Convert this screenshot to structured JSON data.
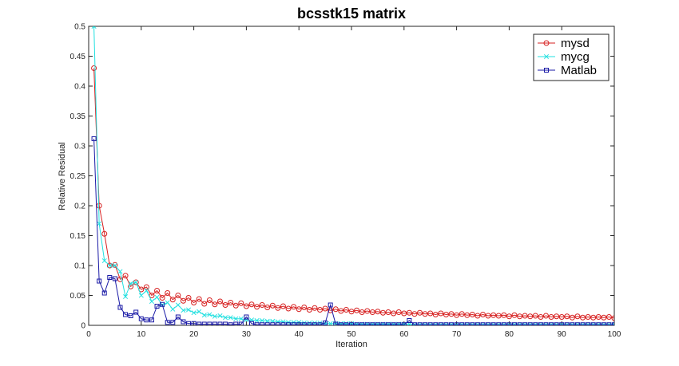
{
  "chart_data": {
    "type": "line",
    "title": "bcsstk15 matrix",
    "xlabel": "Iteration",
    "ylabel": "Relative Residual",
    "xlim": [
      0,
      100
    ],
    "ylim": [
      0,
      0.5
    ],
    "xticks": [
      0,
      10,
      20,
      30,
      40,
      50,
      60,
      70,
      80,
      90,
      100
    ],
    "yticks": [
      0,
      0.05,
      0.1,
      0.15,
      0.2,
      0.25,
      0.3,
      0.35,
      0.4,
      0.45,
      0.5
    ],
    "ytick_labels": [
      "0",
      "0.05",
      "0.1",
      "0.15",
      "0.2",
      "0.25",
      "0.3",
      "0.35",
      "0.4",
      "0.45",
      "0.5"
    ],
    "grid": false,
    "legend_position": "top-right",
    "series": [
      {
        "name": "mysd",
        "color": "#d62020",
        "marker": "circle",
        "x": [
          1,
          2,
          3,
          4,
          5,
          6,
          7,
          8,
          9,
          10,
          11,
          12,
          13,
          14,
          15,
          16,
          17,
          18,
          19,
          20,
          21,
          22,
          23,
          24,
          25,
          26,
          27,
          28,
          29,
          30,
          31,
          32,
          33,
          34,
          35,
          36,
          37,
          38,
          39,
          40,
          41,
          42,
          43,
          44,
          45,
          46,
          47,
          48,
          49,
          50,
          51,
          52,
          53,
          54,
          55,
          56,
          57,
          58,
          59,
          60,
          61,
          62,
          63,
          64,
          65,
          66,
          67,
          68,
          69,
          70,
          71,
          72,
          73,
          74,
          75,
          76,
          77,
          78,
          79,
          80,
          81,
          82,
          83,
          84,
          85,
          86,
          87,
          88,
          89,
          90,
          91,
          92,
          93,
          94,
          95,
          96,
          97,
          98,
          99,
          100
        ],
        "y": [
          0.43,
          0.2,
          0.153,
          0.1,
          0.101,
          0.077,
          0.083,
          0.065,
          0.072,
          0.06,
          0.064,
          0.05,
          0.058,
          0.046,
          0.054,
          0.043,
          0.05,
          0.041,
          0.046,
          0.038,
          0.044,
          0.036,
          0.042,
          0.035,
          0.04,
          0.034,
          0.038,
          0.033,
          0.037,
          0.032,
          0.035,
          0.031,
          0.034,
          0.03,
          0.033,
          0.029,
          0.032,
          0.028,
          0.031,
          0.027,
          0.03,
          0.026,
          0.029,
          0.026,
          0.028,
          0.025,
          0.027,
          0.024,
          0.026,
          0.023,
          0.025,
          0.022,
          0.024,
          0.022,
          0.023,
          0.021,
          0.022,
          0.02,
          0.022,
          0.02,
          0.021,
          0.019,
          0.021,
          0.019,
          0.02,
          0.018,
          0.02,
          0.018,
          0.019,
          0.017,
          0.019,
          0.017,
          0.018,
          0.016,
          0.018,
          0.016,
          0.017,
          0.016,
          0.017,
          0.015,
          0.017,
          0.015,
          0.016,
          0.015,
          0.016,
          0.014,
          0.016,
          0.014,
          0.015,
          0.014,
          0.015,
          0.013,
          0.015,
          0.013,
          0.014,
          0.013,
          0.014,
          0.013,
          0.014,
          0.012
        ]
      },
      {
        "name": "mycg",
        "color": "#22e0e0",
        "marker": "x",
        "x": [
          1,
          2,
          3,
          4,
          5,
          6,
          7,
          8,
          9,
          10,
          11,
          12,
          13,
          14,
          15,
          16,
          17,
          18,
          19,
          20,
          21,
          22,
          23,
          24,
          25,
          26,
          27,
          28,
          29,
          30,
          31,
          32,
          33,
          34,
          35,
          36,
          37,
          38,
          39,
          40,
          41,
          42,
          43,
          44,
          45,
          46,
          47,
          48,
          49,
          50,
          51,
          52,
          53,
          54,
          55,
          56,
          57,
          58,
          59,
          60,
          61,
          62,
          63,
          64,
          65,
          66,
          67,
          68,
          69,
          70,
          71,
          72,
          73,
          74,
          75,
          76,
          77,
          78,
          79,
          80,
          81,
          82,
          83,
          84,
          85,
          86,
          87,
          88,
          89,
          90,
          91,
          92,
          93,
          94,
          95,
          96,
          97,
          98,
          99,
          100
        ],
        "y": [
          0.5,
          0.17,
          0.108,
          0.1,
          0.1,
          0.09,
          0.048,
          0.07,
          0.072,
          0.05,
          0.058,
          0.04,
          0.047,
          0.034,
          0.038,
          0.027,
          0.034,
          0.025,
          0.026,
          0.021,
          0.023,
          0.017,
          0.018,
          0.015,
          0.016,
          0.013,
          0.013,
          0.011,
          0.011,
          0.009,
          0.009,
          0.008,
          0.008,
          0.007,
          0.007,
          0.006,
          0.006,
          0.005,
          0.005,
          0.005,
          0.004,
          0.004,
          0.004,
          0.004,
          0.003,
          0.003,
          0.003,
          0.003,
          0.003,
          0.003,
          0.002,
          0.002,
          0.002,
          0.002,
          0.002,
          0.002,
          0.002,
          0.002,
          0.002,
          0.002,
          0.002,
          0.001,
          0.001,
          0.001,
          0.001,
          0.001,
          0.001,
          0.001,
          0.001,
          0.001,
          0.001,
          0.001,
          0.001,
          0.001,
          0.001,
          0.001,
          0.001,
          0.001,
          0.001,
          0.001,
          0.001,
          0.001,
          0.001,
          0.001,
          0.001,
          0.001,
          0.001,
          0.001,
          0.001,
          0.001,
          0.001,
          0.001,
          0.001,
          0.001,
          0.001,
          0.001,
          0.001,
          0.001,
          0.001,
          0.001
        ]
      },
      {
        "name": "Matlab",
        "color": "#1a1aa6",
        "marker": "square",
        "x": [
          1,
          2,
          3,
          4,
          5,
          6,
          7,
          8,
          9,
          10,
          11,
          12,
          13,
          14,
          15,
          16,
          17,
          18,
          19,
          20,
          21,
          22,
          23,
          24,
          25,
          26,
          27,
          28,
          29,
          30,
          31,
          32,
          33,
          34,
          35,
          36,
          37,
          38,
          39,
          40,
          41,
          42,
          43,
          44,
          45,
          46,
          47,
          48,
          49,
          50,
          51,
          52,
          53,
          54,
          55,
          56,
          57,
          58,
          59,
          60,
          61,
          62,
          63,
          64,
          65,
          66,
          67,
          68,
          69,
          70,
          71,
          72,
          73,
          74,
          75,
          76,
          77,
          78,
          79,
          80,
          81,
          82,
          83,
          84,
          85,
          86,
          87,
          88,
          89,
          90,
          91,
          92,
          93,
          94,
          95,
          96,
          97,
          98,
          99,
          100
        ],
        "y": [
          0.312,
          0.074,
          0.054,
          0.08,
          0.078,
          0.03,
          0.018,
          0.016,
          0.022,
          0.011,
          0.009,
          0.009,
          0.032,
          0.035,
          0.005,
          0.005,
          0.014,
          0.006,
          0.003,
          0.003,
          0.002,
          0.002,
          0.002,
          0.002,
          0.002,
          0.002,
          0.001,
          0.002,
          0.002,
          0.014,
          0.003,
          0.001,
          0.001,
          0.001,
          0.001,
          0.001,
          0.001,
          0.001,
          0.001,
          0.001,
          0.001,
          0.001,
          0.001,
          0.001,
          0.004,
          0.034,
          0.002,
          0.001,
          0.001,
          0.001,
          0.001,
          0.001,
          0.001,
          0.001,
          0.001,
          0.001,
          0.001,
          0.001,
          0.001,
          0.001,
          0.008,
          0.001,
          0.001,
          0.001,
          0.001,
          0.001,
          0.001,
          0.001,
          0.001,
          0.001,
          0.001,
          0.001,
          0.001,
          0.001,
          0.001,
          0.001,
          0.001,
          0.001,
          0.001,
          0.001,
          0.001,
          0.001,
          0.001,
          0.001,
          0.001,
          0.001,
          0.001,
          0.001,
          0.001,
          0.001,
          0.001,
          0.001,
          0.001,
          0.001,
          0.001,
          0.001,
          0.001,
          0.001,
          0.001,
          0.001
        ]
      }
    ]
  }
}
